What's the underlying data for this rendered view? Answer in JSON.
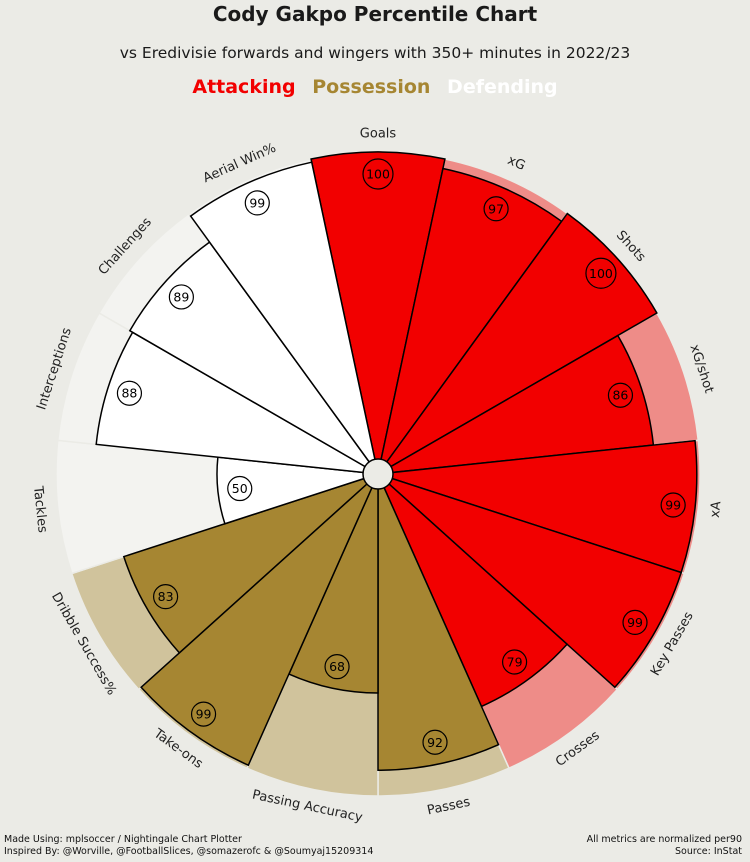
{
  "title": "Cody Gakpo Percentile Chart",
  "subtitle": "vs Eredivisie forwards and wingers with 350+ minutes in 2022/23",
  "legend": [
    {
      "label": "Attacking",
      "color": "#f20000"
    },
    {
      "label": "Possession",
      "color": "#a68632"
    },
    {
      "label": "Defending",
      "color": "#ffffff"
    }
  ],
  "footer": {
    "left_line1": "Made Using: mplsoccer / Nightingale Chart Plotter",
    "left_line2": "Inspired By: @Worville, @FootballSlices, @somazerofc & @Soumyaj15209314",
    "right_line1": "All metrics are normalized per90",
    "right_line2": "Source: InStat"
  },
  "chart_data": {
    "type": "radial-bar",
    "range": [
      0,
      100
    ],
    "metrics": [
      {
        "name": "Goals",
        "value": 100,
        "group": "Attacking"
      },
      {
        "name": "xG",
        "value": 97,
        "group": "Attacking"
      },
      {
        "name": "Shots",
        "value": 100,
        "group": "Attacking"
      },
      {
        "name": "xG/shot",
        "value": 86,
        "group": "Attacking"
      },
      {
        "name": "xA",
        "value": 99,
        "group": "Attacking"
      },
      {
        "name": "Key Passes",
        "value": 99,
        "group": "Attacking"
      },
      {
        "name": "Crosses",
        "value": 79,
        "group": "Attacking"
      },
      {
        "name": "Passes",
        "value": 92,
        "group": "Possession"
      },
      {
        "name": "Passing Accuracy",
        "value": 68,
        "group": "Possession"
      },
      {
        "name": "Take-ons",
        "value": 99,
        "group": "Possession"
      },
      {
        "name": "Dribble Success%",
        "value": 83,
        "group": "Possession"
      },
      {
        "name": "Tackles",
        "value": 50,
        "group": "Defending"
      },
      {
        "name": "Interceptions",
        "value": 88,
        "group": "Defending"
      },
      {
        "name": "Challenges",
        "value": 89,
        "group": "Defending"
      },
      {
        "name": "Aerial Win%",
        "value": 99,
        "group": "Defending"
      }
    ],
    "group_colors": {
      "Attacking": {
        "fill": "#f20000",
        "background": "#ee8c88"
      },
      "Possession": {
        "fill": "#a68632",
        "background": "#d0c39c"
      },
      "Defending": {
        "fill": "#ffffff",
        "background": "#f3f3f0"
      }
    }
  }
}
